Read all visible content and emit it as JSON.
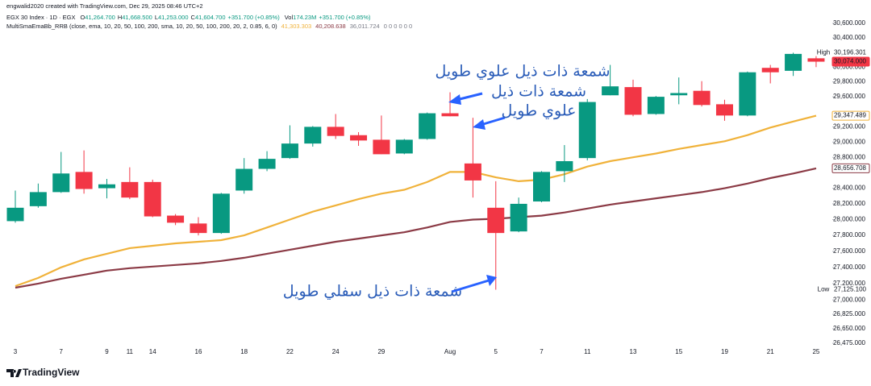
{
  "chart_data": {
    "type": "candlestick",
    "credit": "engwalid2020 created with TradingView.com, Dec 29, 2025 08:46 UTC+2",
    "symbol": "EGX 30 Index · 1D · EGX",
    "ohlc_legend": [
      {
        "key": "O",
        "value": "41,264.700"
      },
      {
        "key": "H",
        "value": "41,668.500"
      },
      {
        "key": "L",
        "value": "41,253.000"
      },
      {
        "key": "C",
        "value": "41,604.700"
      }
    ],
    "change": "+351.700 (+0.85%)",
    "volume_key": "Vol",
    "volume": "174.23M",
    "volume_change": "+351.700 (+0.85%)",
    "indicator": "MultiSmaEmaBb_RRB (close, ema, 10, 20, 50, 100, 200, sma, 10, 20, 50, 100, 200, 20, 2, 0.85, 6, 0)",
    "indicator_values": [
      {
        "text": "41,303.303",
        "color": "#f0b23a"
      },
      {
        "text": "40,208.638",
        "color": "#8b3a45"
      },
      {
        "text": "36,011.724",
        "color": "#787b86"
      },
      {
        "text": "0 0 0 0 0 0",
        "color": "#787b86"
      }
    ],
    "logo": "TradingView",
    "log_scale": true,
    "grid": false,
    "up_color": "#089981",
    "down_color": "#f23645",
    "categories": [
      "3",
      null,
      "7",
      null,
      "9",
      "11",
      "14",
      null,
      "16",
      null,
      "18",
      null,
      "22",
      null,
      "24",
      null,
      "29",
      null,
      null,
      "Aug",
      null,
      "5",
      null,
      "7",
      null,
      "11",
      null,
      "13",
      null,
      "15",
      null,
      "19",
      null,
      "21",
      null,
      "25"
    ],
    "open": [
      27980,
      28170,
      28350,
      28610,
      28400,
      28480,
      28480,
      28050,
      27950,
      27830,
      28370,
      28650,
      28790,
      28980,
      29200,
      29090,
      29030,
      28850,
      29040,
      29380,
      28720,
      28150,
      27850,
      28230,
      28620,
      28790,
      29620,
      29730,
      29370,
      29620,
      29680,
      29500,
      29350,
      29990,
      29950,
      30120
    ],
    "high": [
      28370,
      28460,
      28870,
      28890,
      28520,
      28670,
      28510,
      28070,
      28030,
      28340,
      28790,
      28880,
      29220,
      29210,
      29370,
      29130,
      29350,
      29040,
      29390,
      29660,
      29320,
      28490,
      28280,
      28620,
      28960,
      29570,
      30030,
      29830,
      29610,
      29860,
      29810,
      29560,
      29940,
      30030,
      30196.301,
      30150
    ],
    "low": [
      27960,
      28150,
      28340,
      28330,
      28270,
      28260,
      28030,
      27930,
      27800,
      27820,
      28330,
      28620,
      28780,
      28940,
      29040,
      28950,
      28840,
      28840,
      29030,
      29340,
      28280,
      27125.1,
      27840,
      28220,
      28480,
      28760,
      29620,
      29340,
      29360,
      29500,
      29470,
      29280,
      29340,
      29780,
      29880,
      30000
    ],
    "close": [
      28150,
      28350,
      28590,
      28390,
      28450,
      28280,
      28040,
      27960,
      27830,
      28330,
      28650,
      28780,
      28980,
      29200,
      29080,
      29020,
      28840,
      29030,
      29380,
      29340,
      28500,
      27830,
      28200,
      28610,
      28750,
      29530,
      29740,
      29360,
      29600,
      29650,
      29490,
      29350,
      29930,
      29930,
      30180,
      30074
    ],
    "series": [
      {
        "color": "#f0b23a",
        "values": [
          27170,
          27270,
          27400,
          27500,
          27570,
          27640,
          27670,
          27700,
          27720,
          27740,
          27800,
          27900,
          28000,
          28100,
          28180,
          28260,
          28330,
          28380,
          28480,
          28610,
          28610,
          28540,
          28490,
          28510,
          28580,
          28680,
          28750,
          28800,
          28850,
          28910,
          28960,
          29010,
          29090,
          29190,
          29270,
          29347.489
        ]
      },
      {
        "color": "#8b3a45",
        "values": [
          27150,
          27200,
          27260,
          27310,
          27360,
          27390,
          27410,
          27430,
          27450,
          27480,
          27520,
          27570,
          27620,
          27670,
          27720,
          27760,
          27800,
          27840,
          27900,
          27970,
          28000,
          28010,
          28030,
          28050,
          28090,
          28140,
          28190,
          28230,
          28270,
          28310,
          28350,
          28400,
          28460,
          28530,
          28590,
          28656.708
        ]
      }
    ],
    "ylim": [
      26475,
      30600
    ],
    "yticks": [
      {
        "value": 26475,
        "label": "26,475.000"
      },
      {
        "value": 26650,
        "label": "26,650.000"
      },
      {
        "value": 26825,
        "label": "26,825.000"
      },
      {
        "value": 27000,
        "label": "27,000.000"
      },
      {
        "value": 27200,
        "label": "27,200.000"
      },
      {
        "value": 27400,
        "label": "27,400.000"
      },
      {
        "value": 27600,
        "label": "27,600.000"
      },
      {
        "value": 27800,
        "label": "27,800.000"
      },
      {
        "value": 28000,
        "label": "28,000.000"
      },
      {
        "value": 28200,
        "label": "28,200.000"
      },
      {
        "value": 28400,
        "label": "28,400.000"
      },
      {
        "value": 28800,
        "label": "28,800.000"
      },
      {
        "value": 29000,
        "label": "29,000.000"
      },
      {
        "value": 29200,
        "label": "29,200.000"
      },
      {
        "value": 29600,
        "label": "29,600.000"
      },
      {
        "value": 29800,
        "label": "29,800.000"
      },
      {
        "value": 30000,
        "label": "30,000.000"
      },
      {
        "value": 30400,
        "label": "30,400.000"
      },
      {
        "value": 30600,
        "label": "30,600.000"
      }
    ],
    "price_tags": [
      {
        "tag": "High",
        "value": 30196.301,
        "label": "30,196.301",
        "color": "#131722",
        "style": "plain"
      },
      {
        "value": 30074,
        "label": "30,074.000",
        "color": "#f23645",
        "style": "fill"
      },
      {
        "value": 29347.489,
        "label": "29,347.489",
        "color": "#f0b23a",
        "style": "outline"
      },
      {
        "value": 28656.708,
        "label": "28,656.708",
        "color": "#8b3a45",
        "style": "outline"
      },
      {
        "tag": "Low",
        "value": 27125.1,
        "label": "27,125.100",
        "color": "#131722",
        "style": "plain"
      }
    ],
    "annotations": [
      {
        "text": "شمعة ذات ذيل علوي طويل"
      },
      {
        "text": "شمعة ذات ذيل"
      },
      {
        "text": "علوي طويل"
      },
      {
        "text": "شمعة ذات ذيل سفلي طويل"
      }
    ]
  }
}
